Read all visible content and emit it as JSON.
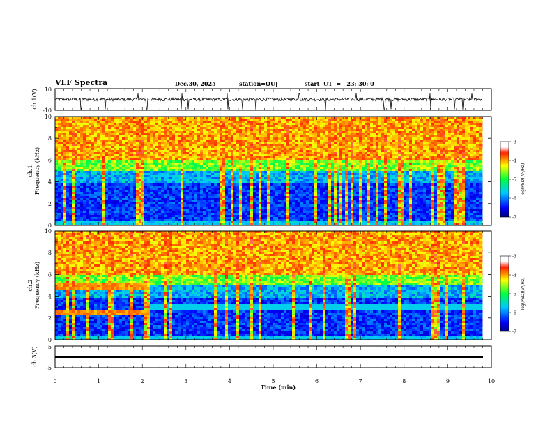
{
  "header": {
    "title": "VLF Spectra",
    "date": "Dec.30, 2025",
    "station": "station=OUJ",
    "start": "start  UT  =   23: 30: 0"
  },
  "panels": {
    "ch1_wave": {
      "ylabel": "ch.1(V)",
      "ymin": "-10",
      "ymax": "10"
    },
    "ch1_spec": {
      "ylabel": "Frequency (kHz)",
      "ylabel_ch": "ch.1"
    },
    "ch2_spec": {
      "ylabel": "Frequency (kHz)",
      "ylabel_ch": "ch.2"
    },
    "ch3_wave": {
      "ylabel": "ch.3(V)",
      "ymin": "-5",
      "ymax": "5"
    }
  },
  "colorbar": {
    "label": "log(PSD)(V²/Hz)",
    "ticks": [
      "-3",
      "-4",
      "-5",
      "-6",
      "-7"
    ]
  },
  "colors": {
    "frame": "#000000",
    "background": "#ffffff"
  },
  "chart_data": [
    {
      "type": "line",
      "title": "VLF Spectra",
      "ylabel": "ch.1(V)",
      "xlabel": "",
      "xlim": [
        0,
        10
      ],
      "ylim": [
        -10,
        10
      ],
      "yticks": [
        "10",
        "-10"
      ],
      "description_values": {
        "baseline": 0,
        "spike_times_min": [
          0.6,
          1.15,
          1.9,
          2.1,
          2.9,
          3.05,
          3.95,
          4.3,
          4.6,
          5.6,
          6.2,
          6.9,
          7.55,
          7.7,
          8.6,
          9.15,
          9.35,
          9.55
        ]
      }
    },
    {
      "type": "heatmap",
      "ylabel": "Frequency (kHz)",
      "series_label": "ch.1",
      "xlim": [
        0,
        10
      ],
      "ylim": [
        0,
        10
      ],
      "yticks": [
        "0",
        "2",
        "4",
        "6",
        "8",
        "10"
      ],
      "data_end_min": 9.8,
      "colorbar_range": [
        -7,
        -3
      ]
    },
    {
      "type": "heatmap",
      "ylabel": "Frequency (kHz)",
      "series_label": "ch.2",
      "xlim": [
        0,
        10
      ],
      "ylim": [
        0,
        10
      ],
      "yticks": [
        "0",
        "2",
        "4",
        "6",
        "8",
        "10"
      ],
      "data_end_min": 9.8,
      "colorbar_range": [
        -7,
        -3
      ],
      "bands_khz_until_2min": [
        2.6,
        5.0
      ]
    },
    {
      "type": "line",
      "ylabel": "ch.3(V)",
      "xlabel": "Time (min)",
      "xlim": [
        0,
        10
      ],
      "ylim": [
        -5,
        5
      ],
      "yticks": [
        "5",
        "-5"
      ],
      "xticks": [
        "0",
        "1",
        "2",
        "3",
        "4",
        "5",
        "6",
        "7",
        "8",
        "9",
        "10"
      ],
      "values_constant_v": -0.8
    }
  ]
}
